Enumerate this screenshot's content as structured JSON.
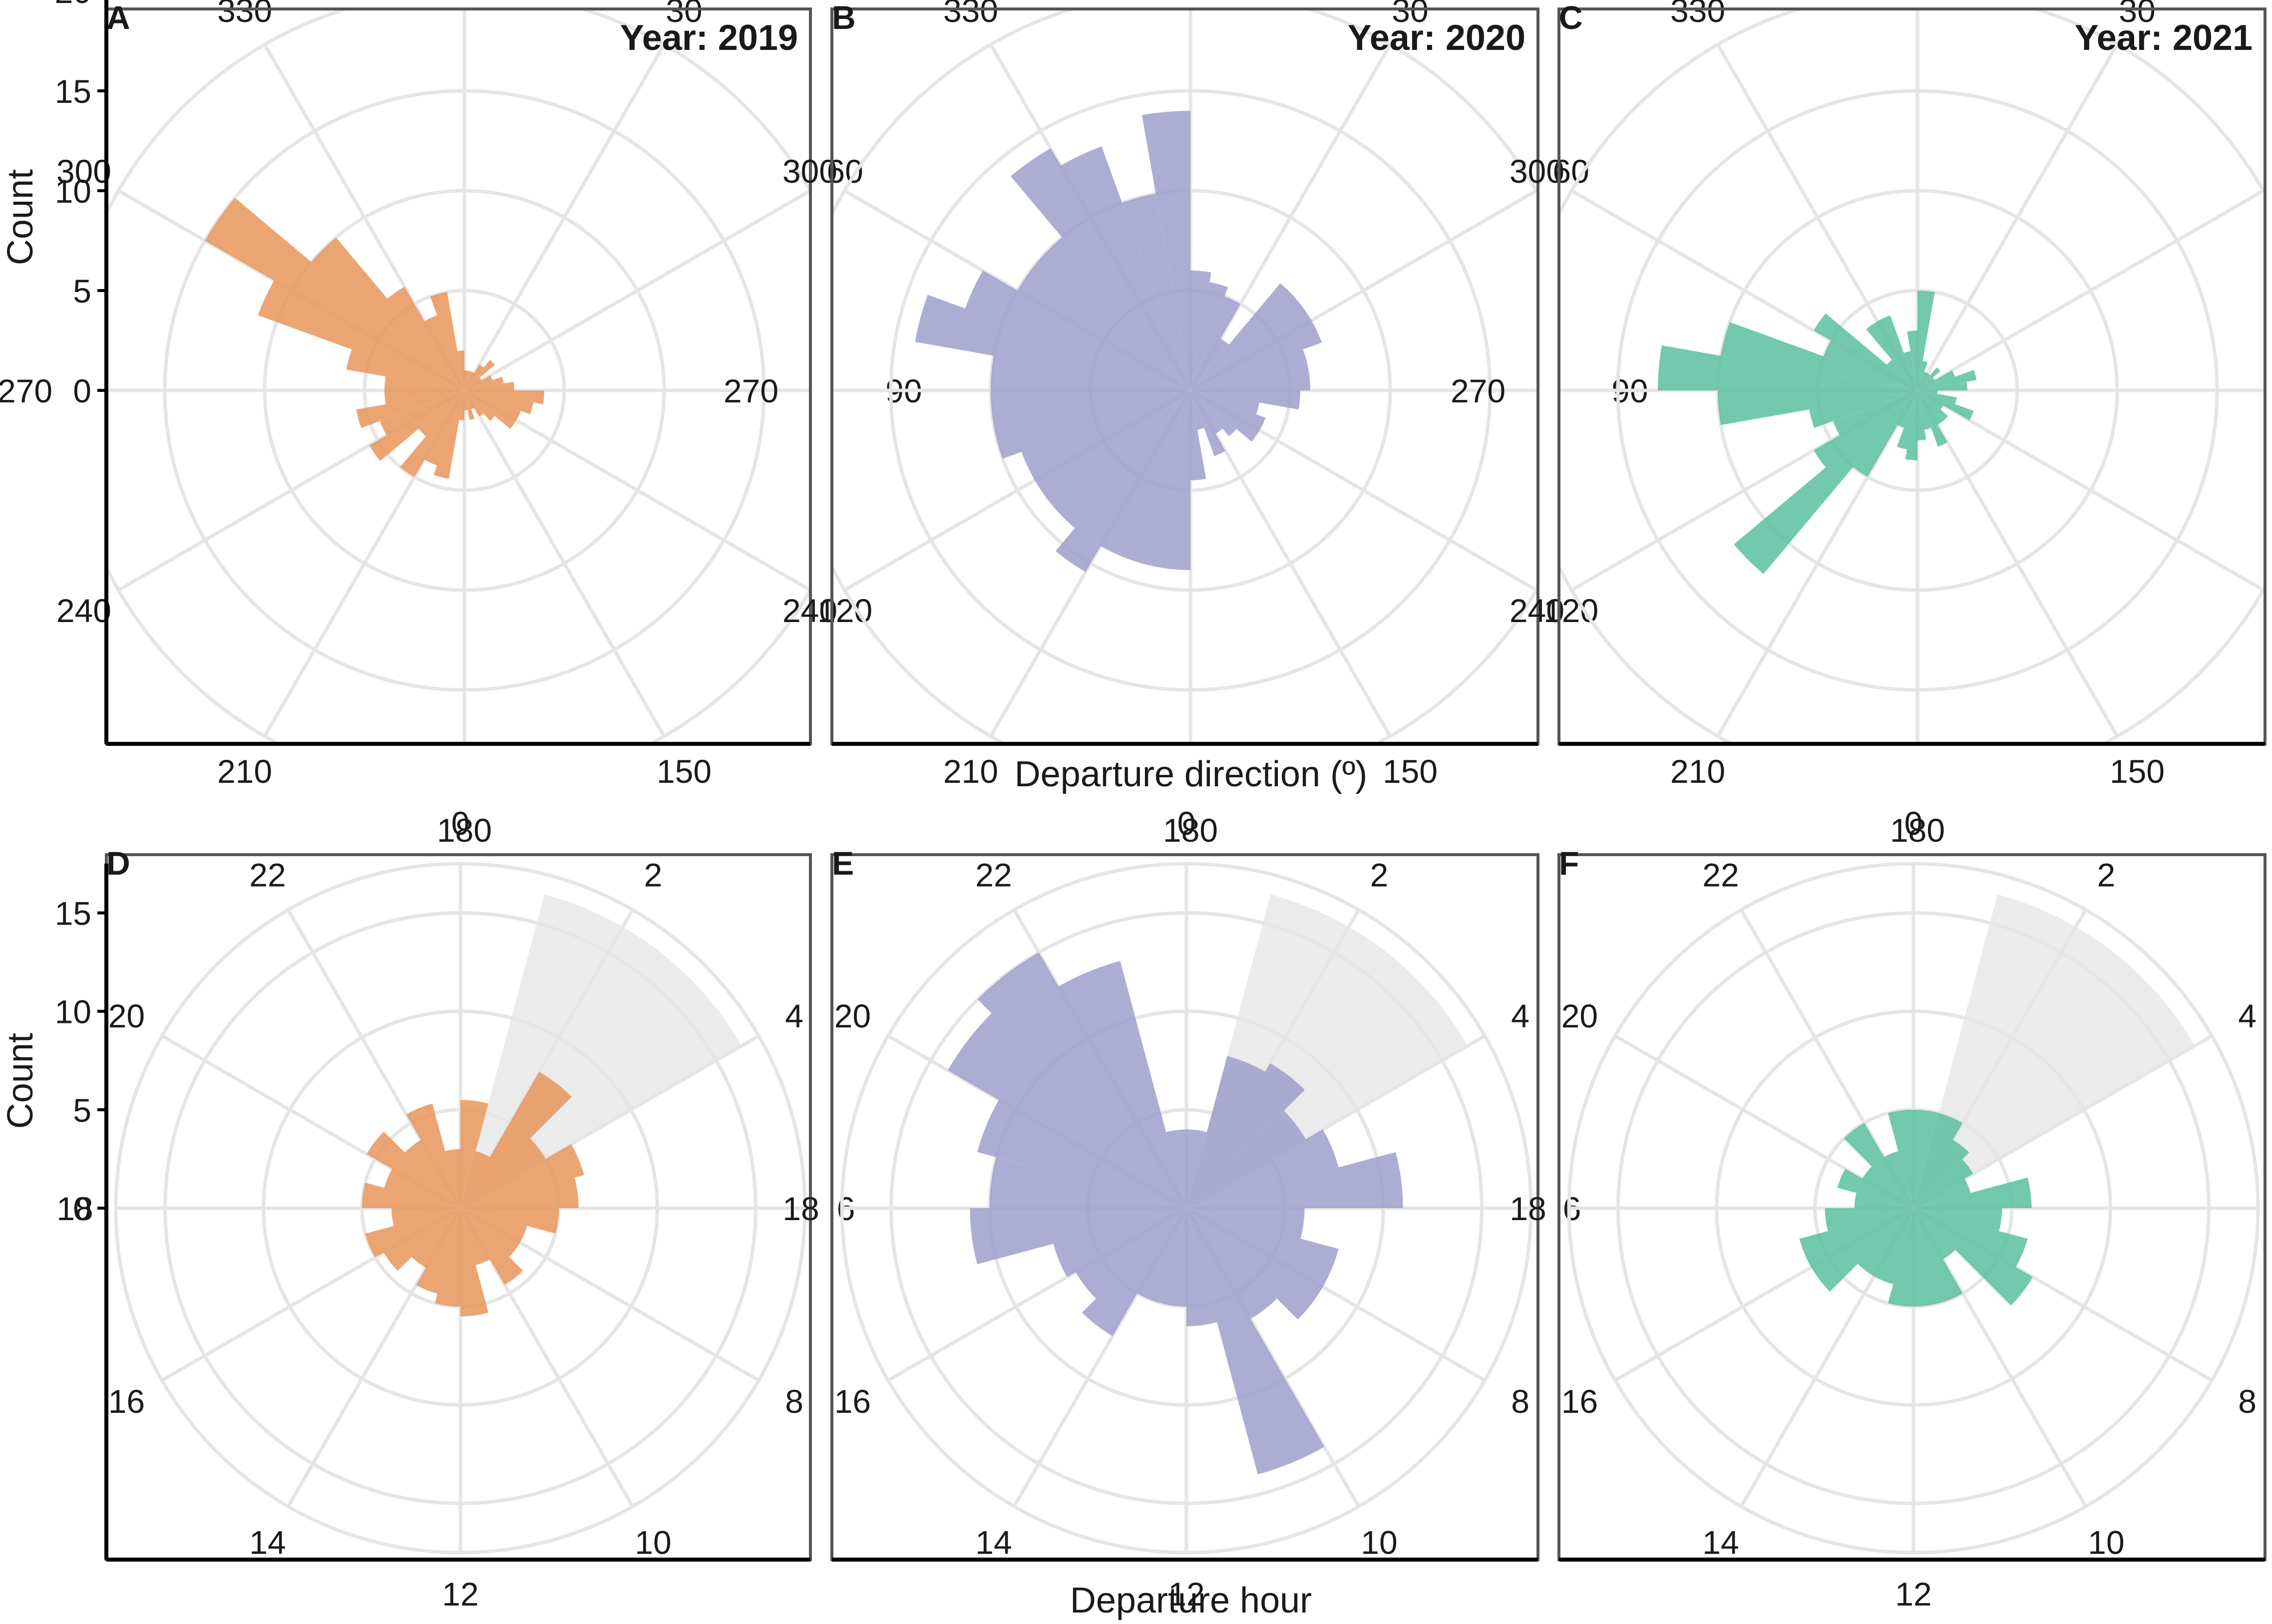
{
  "colors": {
    "y2019": "#E8955A",
    "y2020": "#9F9ECB",
    "y2021": "#5BC0A0",
    "grid": "#E5E5E5",
    "highlight": "#EBEBEB",
    "frame": "#555555"
  },
  "axis_titles": {
    "top_x": "Departure direction (º)",
    "bottom_x": "Departure hour",
    "y_top": "Count",
    "y_bottom": "Count"
  },
  "chart_data": [
    {
      "panel": "A",
      "type": "polar-bar",
      "variable": "direction",
      "color_key": "y2019",
      "year_label": "Year: 2019",
      "rmax": 20,
      "ring_step": 5,
      "y_ticks": [
        0,
        5,
        10,
        15,
        20
      ],
      "angle_labels": [
        "0/360",
        "30",
        "60",
        "90",
        "120",
        "150",
        "180",
        "210",
        "240",
        "270",
        "300",
        "330"
      ],
      "bin_width": 10,
      "bins": [
        0,
        10,
        20,
        30,
        40,
        50,
        60,
        70,
        80,
        90,
        100,
        110,
        120,
        130,
        140,
        150,
        160,
        170,
        180,
        190,
        200,
        210,
        220,
        230,
        240,
        250,
        260,
        270,
        280,
        290,
        300,
        310,
        320,
        330,
        340,
        350
      ],
      "values": [
        1,
        1,
        1,
        1.5,
        2,
        1,
        1.5,
        2,
        2.5,
        4,
        3.5,
        3,
        3,
        2,
        1.5,
        1,
        1.5,
        1,
        1.5,
        4.5,
        4,
        5,
        3,
        5.5,
        4.5,
        5.5,
        4,
        4,
        6,
        11,
        15,
        10,
        6,
        4,
        5,
        2
      ]
    },
    {
      "panel": "B",
      "type": "polar-bar",
      "variable": "direction",
      "color_key": "y2020",
      "year_label": "Year: 2020",
      "rmax": 20,
      "ring_step": 5,
      "y_ticks": [
        0,
        5,
        10,
        15,
        20
      ],
      "angle_labels": [
        "0/360",
        "30",
        "60",
        "90",
        "120",
        "150",
        "180",
        "210",
        "240",
        "270",
        "300",
        "330"
      ],
      "bin_width": 10,
      "bins": [
        0,
        10,
        20,
        30,
        40,
        50,
        60,
        70,
        80,
        90,
        100,
        110,
        120,
        130,
        140,
        150,
        160,
        170,
        180,
        190,
        200,
        210,
        220,
        230,
        240,
        250,
        260,
        270,
        280,
        290,
        300,
        310,
        320,
        330,
        340,
        350
      ],
      "values": [
        6,
        5.5,
        5,
        3,
        7,
        7,
        7,
        6,
        6,
        5.5,
        3.5,
        4,
        4,
        3,
        2.5,
        3.5,
        2,
        4.5,
        9,
        9,
        9,
        10.5,
        9,
        9,
        9,
        10,
        10,
        10,
        14,
        12,
        10,
        10,
        14,
        13,
        10,
        14
      ]
    },
    {
      "panel": "C",
      "type": "polar-bar",
      "variable": "direction",
      "color_key": "y2021",
      "year_label": "Year: 2021",
      "rmax": 20,
      "ring_step": 5,
      "y_ticks": [
        0,
        5,
        10,
        15,
        20
      ],
      "angle_labels": [
        "0/360",
        "30",
        "60",
        "90",
        "120",
        "150",
        "180",
        "210",
        "240",
        "270",
        "300",
        "330"
      ],
      "bin_width": 10,
      "bins": [
        0,
        10,
        20,
        30,
        40,
        50,
        60,
        70,
        80,
        90,
        100,
        110,
        120,
        130,
        140,
        150,
        160,
        170,
        180,
        190,
        200,
        210,
        220,
        230,
        240,
        250,
        260,
        270,
        280,
        290,
        300,
        310,
        320,
        330,
        340,
        350
      ],
      "values": [
        5,
        1.5,
        1,
        1,
        1.5,
        1,
        2,
        3,
        2.5,
        1,
        2,
        3,
        1.5,
        2,
        2,
        3,
        2,
        2.5,
        3.5,
        3,
        2,
        5,
        12,
        6,
        4.5,
        5.5,
        10,
        13,
        10,
        5,
        6,
        2,
        4,
        4,
        2,
        3
      ]
    },
    {
      "panel": "D",
      "type": "polar-bar",
      "variable": "hour",
      "color_key": "y2019",
      "year_label": "",
      "rmax": 17.5,
      "ring_step": 5,
      "y_ticks": [
        0,
        5,
        10,
        15
      ],
      "angle_labels": [
        "0",
        "2",
        "4",
        "6",
        "8",
        "10",
        "12",
        "14",
        "16",
        "18",
        "20",
        "22"
      ],
      "highlight_hours": [
        1,
        4
      ],
      "highlight_count": 16.5,
      "bin_width": 1,
      "bins": [
        0,
        1,
        2,
        3,
        4,
        5,
        6,
        7,
        8,
        9,
        10,
        11,
        12,
        13,
        14,
        15,
        16,
        17,
        18,
        19,
        20,
        21,
        22,
        23
      ],
      "values": [
        5.5,
        3,
        8,
        5,
        6.5,
        6,
        5,
        3.5,
        3.5,
        4.5,
        3,
        5.5,
        5,
        4.5,
        3.5,
        4.5,
        5,
        3.5,
        5,
        4,
        5.5,
        4,
        5.5,
        3
      ]
    },
    {
      "panel": "E",
      "type": "polar-bar",
      "variable": "hour",
      "color_key": "y2020",
      "year_label": "",
      "rmax": 17.5,
      "ring_step": 5,
      "y_ticks": [
        0,
        5,
        10,
        15
      ],
      "angle_labels": [
        "0",
        "2",
        "4",
        "6",
        "8",
        "10",
        "12",
        "14",
        "16",
        "18",
        "20",
        "22"
      ],
      "highlight_hours": [
        1,
        4
      ],
      "highlight_count": 16.5,
      "bin_width": 1,
      "bins": [
        0,
        1,
        2,
        3,
        4,
        5,
        6,
        7,
        8,
        9,
        10,
        11,
        12,
        13,
        14,
        15,
        16,
        17,
        18,
        19,
        20,
        21,
        22,
        23
      ],
      "values": [
        4,
        8,
        8.5,
        7,
        8,
        11,
        6,
        8,
        8,
        6.5,
        14,
        6,
        5,
        5,
        7.5,
        6.5,
        7,
        11,
        10,
        11,
        14,
        15,
        13,
        4
      ]
    },
    {
      "panel": "F",
      "type": "polar-bar",
      "variable": "hour",
      "color_key": "y2021",
      "year_label": "",
      "rmax": 17.5,
      "ring_step": 5,
      "y_ticks": [
        0,
        5,
        10,
        15
      ],
      "angle_labels": [
        "0",
        "2",
        "4",
        "6",
        "8",
        "10",
        "12",
        "14",
        "16",
        "18",
        "20",
        "22"
      ],
      "highlight_hours": [
        1,
        4
      ],
      "highlight_count": 16.5,
      "bin_width": 1,
      "bins": [
        0,
        1,
        2,
        3,
        4,
        5,
        6,
        7,
        8,
        9,
        10,
        11,
        12,
        13,
        14,
        15,
        16,
        17,
        18,
        19,
        20,
        21,
        22,
        23
      ],
      "values": [
        5,
        5,
        4,
        3.5,
        3,
        6,
        4.5,
        6,
        7,
        3,
        5,
        5,
        5,
        4,
        4,
        6,
        6,
        4.5,
        3,
        4,
        3,
        5,
        3,
        5
      ]
    }
  ]
}
